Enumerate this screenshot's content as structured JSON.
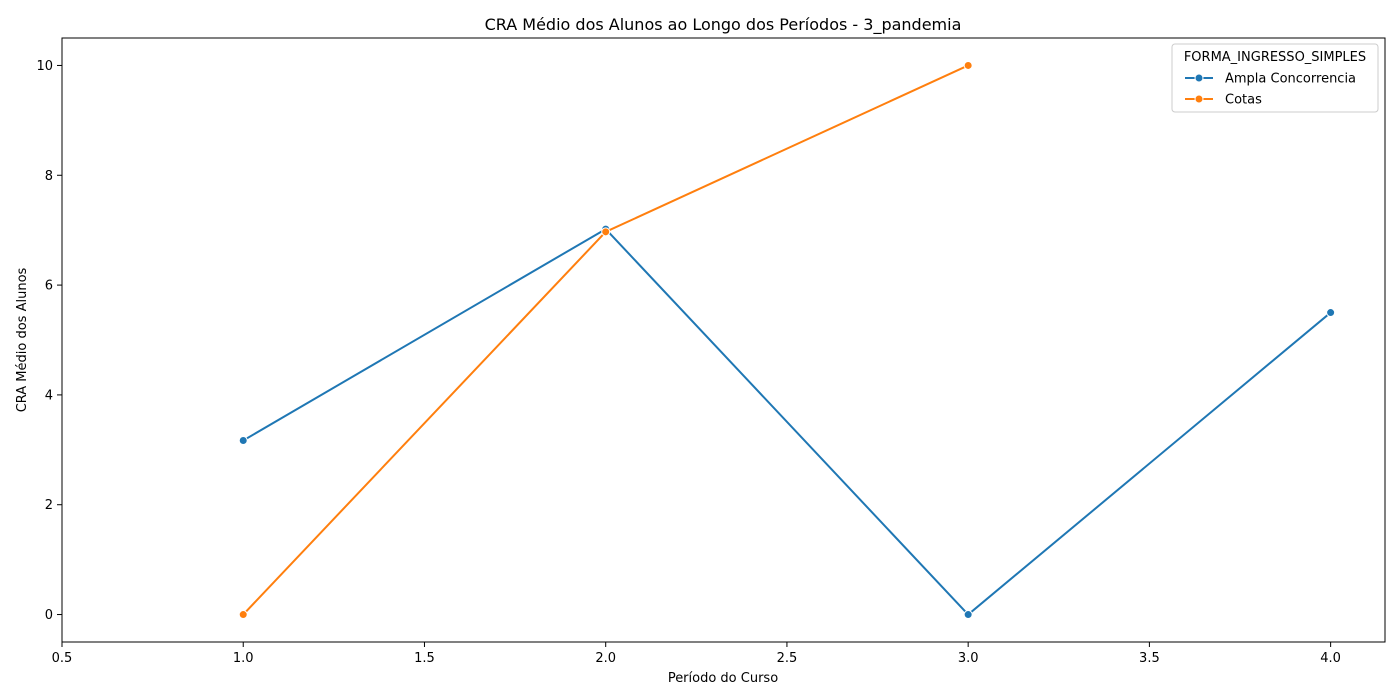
{
  "chart_data": {
    "type": "line",
    "title": "CRA Médio dos Alunos ao Longo dos Períodos - 3_pandemia",
    "xlabel": "Período do Curso",
    "ylabel": "CRA Médio dos Alunos",
    "xlim": [
      0.5,
      4.15
    ],
    "ylim": [
      -0.5,
      10.5
    ],
    "x_ticks": [
      0.5,
      1.0,
      1.5,
      2.0,
      2.5,
      3.0,
      3.5,
      4.0
    ],
    "x_tick_labels": [
      "0.5",
      "1.0",
      "1.5",
      "2.0",
      "2.5",
      "3.0",
      "3.5",
      "4.0"
    ],
    "y_ticks": [
      0,
      2,
      4,
      6,
      8,
      10
    ],
    "y_tick_labels": [
      "0",
      "2",
      "4",
      "6",
      "8",
      "10"
    ],
    "grid": false,
    "legend": {
      "title": "FORMA_INGRESSO_SIMPLES",
      "placement": "top-right"
    },
    "series": [
      {
        "name": "Ampla Concorrencia",
        "color": "#1f77b4",
        "x": [
          1.0,
          2.0,
          3.0,
          4.0
        ],
        "values": [
          3.17,
          7.02,
          0.0,
          5.5
        ]
      },
      {
        "name": "Cotas",
        "color": "#ff7f0e",
        "x": [
          1.0,
          2.0,
          3.0
        ],
        "values": [
          0.0,
          6.97,
          10.0
        ]
      }
    ]
  }
}
